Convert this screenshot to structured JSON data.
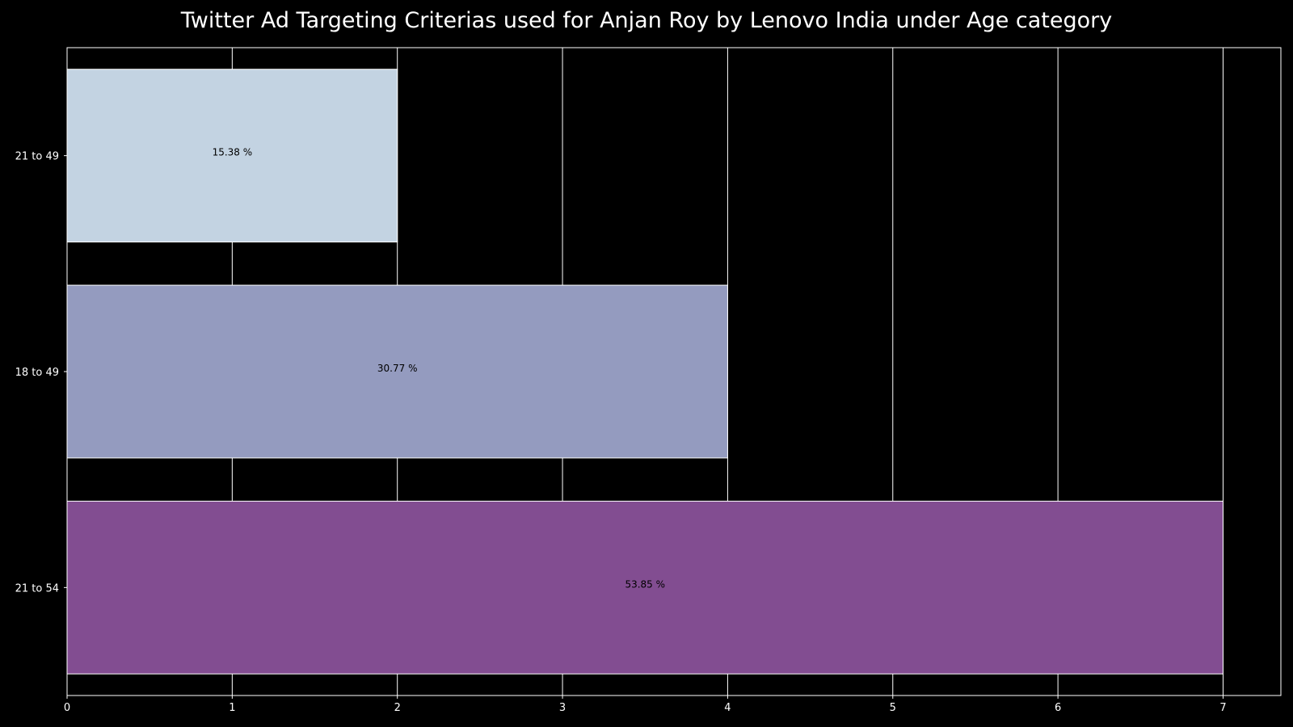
{
  "chart_data": {
    "type": "bar",
    "orientation": "horizontal",
    "title": "Twitter Ad Targeting Criterias used for Anjan Roy by Lenovo India under Age category",
    "xlabel": "",
    "ylabel": "",
    "categories": [
      "21 to 49",
      "18 to 49",
      "21 to 54"
    ],
    "values": [
      2,
      4,
      7
    ],
    "labels": [
      "15.38 %",
      "30.77 %",
      "53.85 %"
    ],
    "colors": [
      "#c3d3e2",
      "#949bbf",
      "#824d91"
    ],
    "xlim": [
      0,
      7.35
    ],
    "xticks": [
      0,
      1,
      2,
      3,
      4,
      5,
      6,
      7
    ],
    "grid": true,
    "background": "#000000",
    "text_color": "#ffffff"
  }
}
